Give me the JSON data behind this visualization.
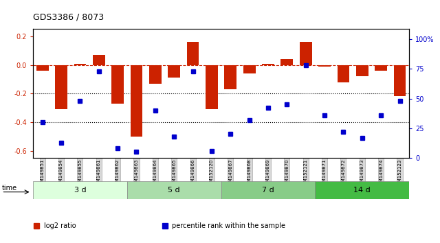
{
  "title": "GDS3386 / 8073",
  "samples": [
    "GSM149851",
    "GSM149854",
    "GSM149855",
    "GSM149861",
    "GSM149862",
    "GSM149863",
    "GSM149864",
    "GSM149865",
    "GSM149866",
    "GSM152120",
    "GSM149867",
    "GSM149868",
    "GSM149869",
    "GSM149870",
    "GSM152121",
    "GSM149871",
    "GSM149872",
    "GSM149873",
    "GSM149874",
    "GSM152123"
  ],
  "log2_ratio": [
    -0.04,
    -0.31,
    0.01,
    0.07,
    -0.27,
    -0.5,
    -0.13,
    -0.09,
    0.16,
    -0.31,
    -0.17,
    -0.06,
    0.01,
    0.04,
    0.16,
    -0.01,
    -0.12,
    -0.08,
    -0.04,
    -0.22
  ],
  "percentile": [
    30,
    13,
    48,
    73,
    8,
    5,
    40,
    18,
    73,
    6,
    20,
    32,
    42,
    45,
    78,
    36,
    22,
    17,
    36,
    48
  ],
  "groups": [
    {
      "label": "3 d",
      "start": 0,
      "end": 5,
      "color": "#ddffdd"
    },
    {
      "label": "5 d",
      "start": 5,
      "end": 10,
      "color": "#aaddaa"
    },
    {
      "label": "7 d",
      "start": 10,
      "end": 15,
      "color": "#88cc88"
    },
    {
      "label": "14 d",
      "start": 15,
      "end": 20,
      "color": "#44bb44"
    }
  ],
  "bar_color": "#cc2200",
  "dot_color": "#0000cc",
  "dashed_color": "#cc2200",
  "left_yticks": [
    0.2,
    0.0,
    -0.2,
    -0.4,
    -0.6
  ],
  "right_yticks": [
    100,
    75,
    50,
    25,
    0
  ],
  "ylim_left": [
    -0.65,
    0.25
  ],
  "ylim_right": [
    0,
    108.33
  ],
  "bg_color": "#ffffff",
  "plot_bg": "#ffffff",
  "tick_label_color_left": "#cc2200",
  "tick_label_color_right": "#0000cc",
  "legend_items": [
    {
      "label": "log2 ratio",
      "color": "#cc2200"
    },
    {
      "label": "percentile rank within the sample",
      "color": "#0000cc"
    }
  ]
}
